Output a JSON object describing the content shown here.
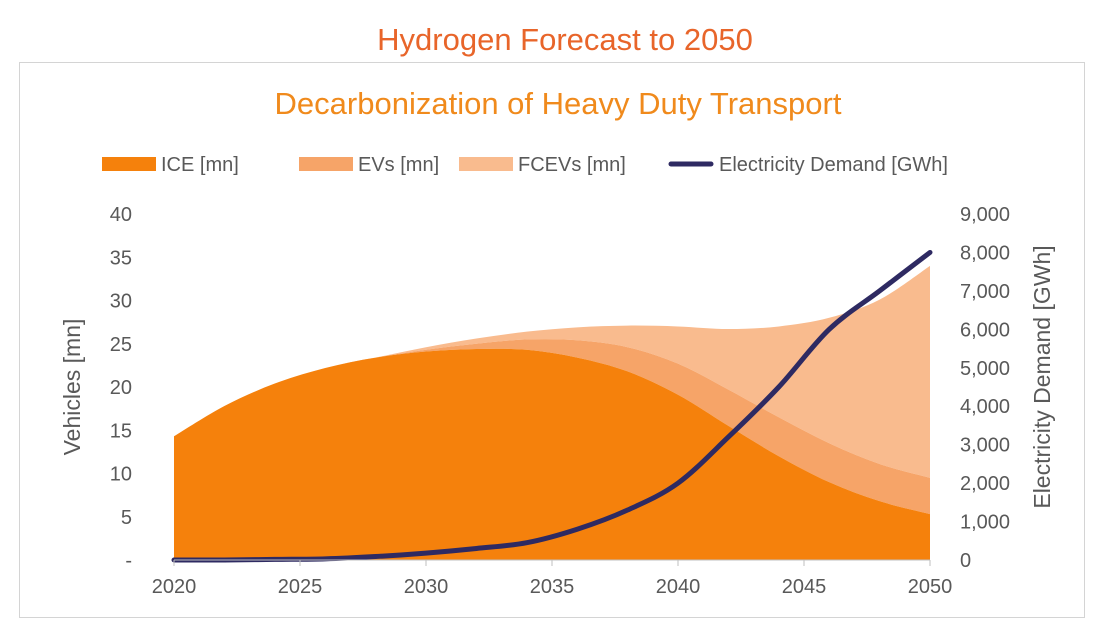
{
  "page": {
    "title": "Hydrogen Forecast to 2050"
  },
  "chart_data": {
    "type": "area",
    "title": "Decarbonization of Heavy Duty Transport",
    "xlabel": "",
    "ylabel": "Vehicles [mn]",
    "y2label": "Electricity Demand [GWh]",
    "x": [
      2020,
      2022,
      2024,
      2026,
      2028,
      2030,
      2032,
      2034,
      2036,
      2038,
      2040,
      2042,
      2044,
      2046,
      2048,
      2050
    ],
    "x_ticks": [
      "2020",
      "2025",
      "2030",
      "2035",
      "2040",
      "2045",
      "2050"
    ],
    "x_tick_values": [
      2020,
      2025,
      2030,
      2035,
      2040,
      2045,
      2050
    ],
    "xlim": [
      2020,
      2050
    ],
    "ylim": [
      0,
      40
    ],
    "y_ticks": [
      "-",
      "5",
      "10",
      "15",
      "20",
      "25",
      "30",
      "35",
      "40"
    ],
    "y_tick_values": [
      0,
      5,
      10,
      15,
      20,
      25,
      30,
      35,
      40
    ],
    "y2lim": [
      0,
      9000
    ],
    "y2_ticks": [
      "0",
      "1,000",
      "2,000",
      "3,000",
      "4,000",
      "5,000",
      "6,000",
      "7,000",
      "8,000",
      "9,000"
    ],
    "y2_tick_values": [
      0,
      1000,
      2000,
      3000,
      4000,
      5000,
      6000,
      7000,
      8000,
      9000
    ],
    "grid": false,
    "legend_position": "top",
    "series": [
      {
        "name": "ICE [mn]",
        "type": "area",
        "stack": true,
        "axis": "left",
        "color": "#f5810c",
        "values": [
          14.3,
          17.8,
          20.4,
          22.2,
          23.4,
          24.1,
          24.4,
          24.3,
          23.4,
          21.8,
          19.1,
          15.5,
          12.0,
          9.0,
          6.8,
          5.3
        ]
      },
      {
        "name": "EVs [mn]",
        "type": "area",
        "stack": true,
        "axis": "left",
        "color": "#f6a468",
        "values": [
          0,
          0,
          0,
          0,
          0,
          0.2,
          0.6,
          1.2,
          2.0,
          2.8,
          3.6,
          4.2,
          4.5,
          4.5,
          4.3,
          4.2
        ]
      },
      {
        "name": "FCEVs [mn]",
        "type": "area",
        "stack": true,
        "axis": "left",
        "color": "#f9bb8e",
        "values": [
          0,
          0,
          0,
          0,
          0,
          0.3,
          0.6,
          0.9,
          1.5,
          2.5,
          4.3,
          7.0,
          10.5,
          14.5,
          19.0,
          24.5
        ]
      },
      {
        "name": "Electricity Demand [GWh]",
        "type": "line",
        "axis": "right",
        "color": "#2e2a62",
        "values": [
          0,
          0,
          15,
          30,
          90,
          180,
          300,
          450,
          800,
          1300,
          2000,
          3200,
          4500,
          6000,
          7000,
          8000
        ]
      }
    ]
  }
}
